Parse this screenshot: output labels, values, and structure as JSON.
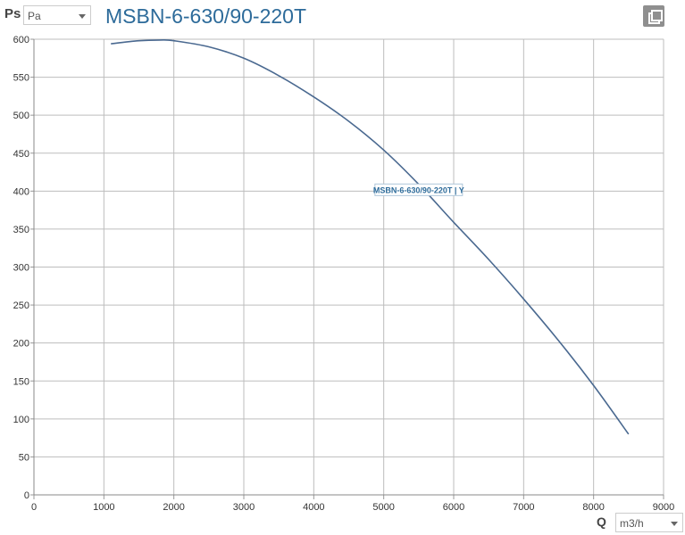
{
  "header": {
    "y_axis_symbol": "Ps",
    "y_unit_select": "Pa",
    "title": "MSBN-6-630/90-220T"
  },
  "footer": {
    "x_axis_symbol": "Q",
    "x_unit_select": "m3/h"
  },
  "chart_data": {
    "type": "line",
    "x": [
      1100,
      1500,
      1800,
      2000,
      2500,
      3000,
      3500,
      4000,
      4500,
      5000,
      5500,
      6000,
      6500,
      7000,
      7500,
      8000,
      8500
    ],
    "series": [
      {
        "name": "MSBN-6-630/90-220T | Y",
        "values": [
          594,
          598,
          599,
          598,
          590,
          575,
          552,
          524,
          492,
          454,
          409,
          359,
          310,
          258,
          203,
          144,
          80
        ],
        "color": "#4a6990"
      }
    ],
    "xlim": [
      0,
      9000
    ],
    "ylim": [
      0,
      600
    ],
    "x_ticks": [
      0,
      1000,
      2000,
      3000,
      4000,
      5000,
      6000,
      7000,
      8000,
      9000
    ],
    "y_ticks": [
      0,
      50,
      100,
      150,
      200,
      250,
      300,
      350,
      400,
      450,
      500,
      550,
      600
    ],
    "grid": true,
    "series_label": {
      "text": "MSBN-6-630/90-220T | Y",
      "x": 5500,
      "y": 400
    }
  }
}
